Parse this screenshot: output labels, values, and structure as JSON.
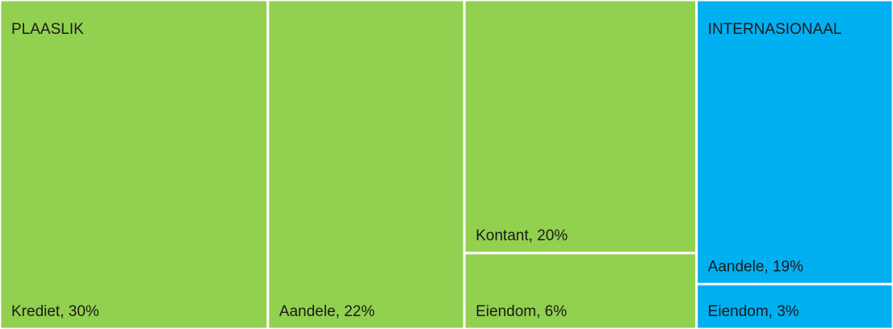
{
  "chart_data": {
    "type": "treemap",
    "series": [
      {
        "name": "PLAASLIK",
        "color": "#92d050",
        "values": [
          30,
          22,
          20,
          6
        ],
        "value_labels": [
          "Krediet, 30%",
          "Aandele, 22%",
          "Kontant, 20%",
          "Eiendom, 6%"
        ]
      },
      {
        "name": "INTERNASIONAAL",
        "color": "#00b0f0",
        "values": [
          19,
          3
        ],
        "value_labels": [
          "Aandele, 19%",
          "Eiendom, 3%"
        ]
      }
    ]
  }
}
